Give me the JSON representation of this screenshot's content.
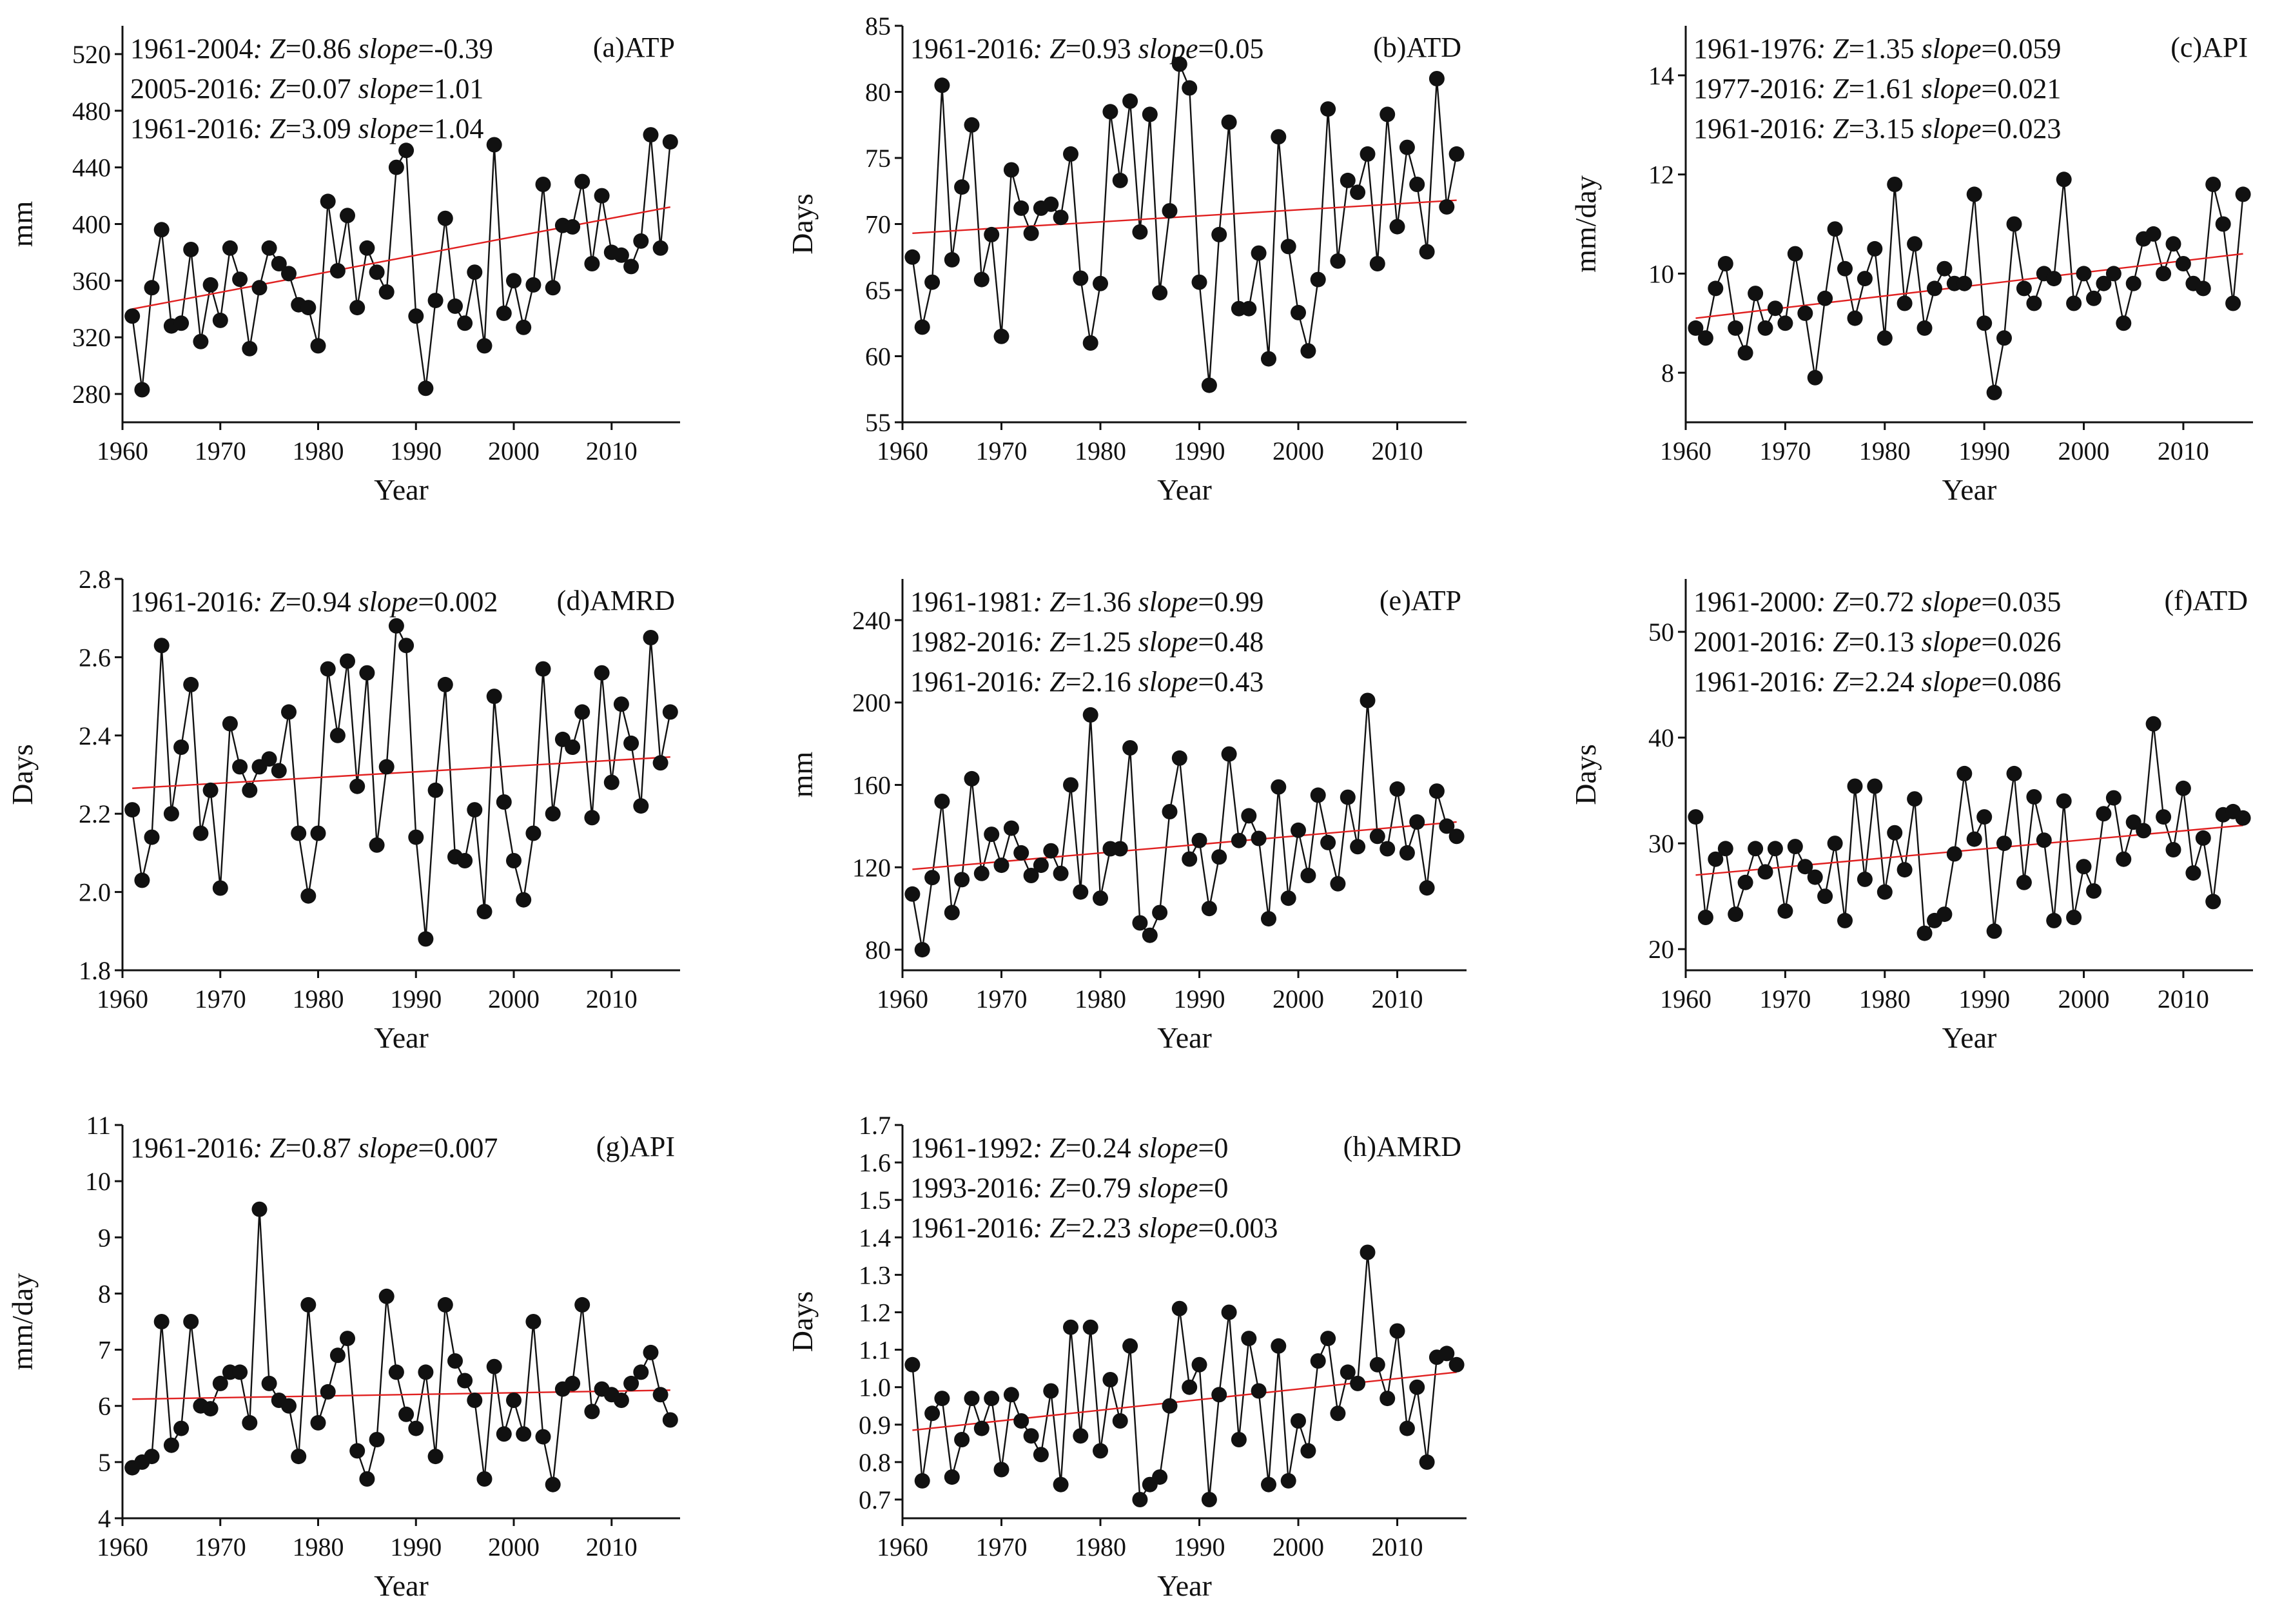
{
  "figure": {
    "x_label": "Year"
  },
  "chart_data": [
    {
      "type": "line",
      "panel": "(a)ATP",
      "ylabel": "mm",
      "xlim": [
        1960,
        2017
      ],
      "ylim": [
        260,
        540
      ],
      "xticks": [
        1960,
        1970,
        1980,
        1990,
        2000,
        2010
      ],
      "yticks": [
        280,
        320,
        360,
        400,
        440,
        480,
        520
      ],
      "annotations": [
        {
          "period": "1961-2004",
          "z": "0.86",
          "slope": "-0.39"
        },
        {
          "period": "2005-2016",
          "z": "0.07",
          "slope": "1.01"
        },
        {
          "period": "1961-2016",
          "z": "3.09",
          "slope": "1.04"
        }
      ],
      "start_year": 1961,
      "values": [
        335,
        283,
        355,
        396,
        328,
        330,
        382,
        317,
        357,
        332,
        383,
        361,
        312,
        355,
        383,
        372,
        365,
        343,
        341,
        314,
        416,
        367,
        406,
        341,
        383,
        366,
        352,
        440,
        452,
        335,
        284,
        346,
        404,
        342,
        330,
        366,
        314,
        456,
        337,
        360,
        327,
        357,
        428,
        355,
        399,
        398,
        430,
        372,
        420,
        380,
        378,
        370,
        388,
        463,
        383,
        458
      ],
      "trend": [
        [
          1961,
          340
        ],
        [
          2016,
          412
        ]
      ]
    },
    {
      "type": "line",
      "panel": "(b)ATD",
      "ylabel": "Days",
      "xlim": [
        1960,
        2017
      ],
      "ylim": [
        55,
        85
      ],
      "xticks": [
        1960,
        1970,
        1980,
        1990,
        2000,
        2010
      ],
      "yticks": [
        55,
        60,
        65,
        70,
        75,
        80,
        85
      ],
      "annotations": [
        {
          "period": "1961-2016",
          "z": "0.93",
          "slope": "0.05"
        }
      ],
      "start_year": 1961,
      "values": [
        67.5,
        62.2,
        65.6,
        80.5,
        67.3,
        72.8,
        77.5,
        65.8,
        69.2,
        61.5,
        74.1,
        71.2,
        69.3,
        71.2,
        71.5,
        70.5,
        75.3,
        65.9,
        61.0,
        65.5,
        78.5,
        73.3,
        79.3,
        69.4,
        78.3,
        64.8,
        71.0,
        82.1,
        80.3,
        65.6,
        57.8,
        69.2,
        77.7,
        63.6,
        63.6,
        67.8,
        59.8,
        76.6,
        68.3,
        63.3,
        60.4,
        65.8,
        78.7,
        67.2,
        73.3,
        72.4,
        75.3,
        67.0,
        78.3,
        69.8,
        75.8,
        73.0,
        67.9,
        81.0,
        71.3,
        75.3
      ],
      "trend": [
        [
          1961,
          69.3
        ],
        [
          2016,
          71.8
        ]
      ]
    },
    {
      "type": "line",
      "panel": "(c)API",
      "ylabel": "mm/day",
      "xlim": [
        1960,
        2017
      ],
      "ylim": [
        7,
        15
      ],
      "xticks": [
        1960,
        1970,
        1980,
        1990,
        2000,
        2010
      ],
      "yticks": [
        8,
        10,
        12,
        14
      ],
      "annotations": [
        {
          "period": "1961-1976",
          "z": "1.35",
          "slope": "0.059"
        },
        {
          "period": "1977-2016",
          "z": "1.61",
          "slope": "0.021"
        },
        {
          "period": "1961-2016",
          "z": "3.15",
          "slope": "0.023"
        }
      ],
      "start_year": 1961,
      "values": [
        8.9,
        8.7,
        9.7,
        10.2,
        8.9,
        8.4,
        9.6,
        8.9,
        9.3,
        9.0,
        10.4,
        9.2,
        7.9,
        9.5,
        10.9,
        10.1,
        9.1,
        9.9,
        10.5,
        8.7,
        11.8,
        9.4,
        10.6,
        8.9,
        9.7,
        10.1,
        9.8,
        9.8,
        11.6,
        9.0,
        7.6,
        8.7,
        11.0,
        9.7,
        9.4,
        10.0,
        9.9,
        11.9,
        9.4,
        10.0,
        9.5,
        9.8,
        10.0,
        9.0,
        9.8,
        10.7,
        10.8,
        10.0,
        10.6,
        10.2,
        9.8,
        9.7,
        11.8,
        11.0,
        9.4,
        11.6
      ],
      "trend": [
        [
          1961,
          9.1
        ],
        [
          2016,
          10.4
        ]
      ]
    },
    {
      "type": "line",
      "panel": "(d)AMRD",
      "ylabel": "Days",
      "xlim": [
        1960,
        2017
      ],
      "ylim": [
        1.8,
        2.8
      ],
      "xticks": [
        1960,
        1970,
        1980,
        1990,
        2000,
        2010
      ],
      "yticks": [
        "1.8",
        "2.0",
        "2.2",
        "2.4",
        "2.6",
        "2.8"
      ],
      "annotations": [
        {
          "period": "1961-2016",
          "z": "0.94",
          "slope": "0.002"
        }
      ],
      "start_year": 1961,
      "values": [
        2.21,
        2.03,
        2.14,
        2.63,
        2.2,
        2.37,
        2.53,
        2.15,
        2.26,
        2.01,
        2.43,
        2.32,
        2.26,
        2.32,
        2.34,
        2.31,
        2.46,
        2.15,
        1.99,
        2.15,
        2.57,
        2.4,
        2.59,
        2.27,
        2.56,
        2.12,
        2.32,
        2.68,
        2.63,
        2.14,
        1.88,
        2.26,
        2.53,
        2.09,
        2.08,
        2.21,
        1.95,
        2.5,
        2.23,
        2.08,
        1.98,
        2.15,
        2.57,
        2.2,
        2.39,
        2.37,
        2.46,
        2.19,
        2.56,
        2.28,
        2.48,
        2.38,
        2.22,
        2.65,
        2.33,
        2.46
      ],
      "trend": [
        [
          1961,
          2.265
        ],
        [
          2016,
          2.345
        ]
      ]
    },
    {
      "type": "line",
      "panel": "(e)ATP",
      "ylabel": "mm",
      "xlim": [
        1960,
        2017
      ],
      "ylim": [
        70,
        260
      ],
      "xticks": [
        1960,
        1970,
        1980,
        1990,
        2000,
        2010
      ],
      "yticks": [
        80,
        120,
        160,
        200,
        240
      ],
      "annotations": [
        {
          "period": "1961-1981",
          "z": "1.36",
          "slope": "0.99"
        },
        {
          "period": "1982-2016",
          "z": "1.25",
          "slope": "0.48"
        },
        {
          "period": "1961-2016",
          "z": "2.16",
          "slope": "0.43"
        }
      ],
      "start_year": 1961,
      "values": [
        107,
        80,
        115,
        152,
        98,
        114,
        163,
        117,
        136,
        121,
        139,
        127,
        116,
        121,
        128,
        117,
        160,
        108,
        194,
        105,
        129,
        129,
        178,
        93,
        87,
        98,
        147,
        173,
        124,
        133,
        100,
        125,
        175,
        133,
        145,
        134,
        95,
        159,
        105,
        138,
        116,
        155,
        132,
        112,
        154,
        130,
        201,
        135,
        129,
        158,
        127,
        142,
        110,
        157,
        140,
        135
      ],
      "trend": [
        [
          1961,
          119
        ],
        [
          2016,
          142
        ]
      ]
    },
    {
      "type": "line",
      "panel": "(f)ATD",
      "ylabel": "Days",
      "xlim": [
        1960,
        2017
      ],
      "ylim": [
        18,
        55
      ],
      "xticks": [
        1960,
        1970,
        1980,
        1990,
        2000,
        2010
      ],
      "yticks": [
        20,
        30,
        40,
        50
      ],
      "annotations": [
        {
          "period": "1961-2000",
          "z": "0.72",
          "slope": "0.035"
        },
        {
          "period": "2001-2016",
          "z": "0.13",
          "slope": "0.026"
        },
        {
          "period": "1961-2016",
          "z": "2.24",
          "slope": "0.086"
        }
      ],
      "start_year": 1961,
      "values": [
        32.5,
        23.0,
        28.5,
        29.5,
        23.3,
        26.3,
        29.5,
        27.3,
        29.5,
        23.6,
        29.7,
        27.8,
        26.8,
        25.0,
        30.0,
        22.7,
        35.4,
        26.6,
        35.4,
        25.4,
        31.0,
        27.5,
        34.2,
        21.5,
        22.7,
        23.3,
        29.0,
        36.6,
        30.4,
        32.5,
        21.7,
        30.0,
        36.6,
        26.3,
        34.4,
        30.3,
        22.7,
        34.0,
        23.0,
        27.8,
        25.5,
        32.8,
        34.3,
        28.5,
        32.0,
        31.2,
        41.3,
        32.5,
        29.4,
        35.2,
        27.2,
        30.5,
        24.5,
        32.7,
        33.0,
        32.4
      ],
      "trend": [
        [
          1961,
          27.0
        ],
        [
          2016,
          31.7
        ]
      ]
    },
    {
      "type": "line",
      "panel": "(g)API",
      "ylabel": "mm/day",
      "xlim": [
        1960,
        2017
      ],
      "ylim": [
        4,
        11
      ],
      "xticks": [
        1960,
        1970,
        1980,
        1990,
        2000,
        2010
      ],
      "yticks": [
        4,
        5,
        6,
        7,
        8,
        9,
        10,
        11
      ],
      "annotations": [
        {
          "period": "1961-2016",
          "z": "0.87",
          "slope": "0.007"
        }
      ],
      "start_year": 1961,
      "values": [
        4.9,
        5.0,
        5.1,
        7.5,
        5.3,
        5.6,
        7.5,
        6.0,
        5.95,
        6.4,
        6.6,
        6.6,
        5.7,
        9.5,
        6.4,
        6.1,
        6.0,
        5.1,
        7.8,
        5.7,
        6.25,
        6.9,
        7.2,
        5.2,
        4.7,
        5.4,
        7.95,
        6.6,
        5.85,
        5.6,
        6.6,
        5.1,
        7.8,
        6.8,
        6.45,
        6.1,
        4.7,
        6.7,
        5.5,
        6.1,
        5.5,
        7.5,
        5.45,
        4.6,
        6.3,
        6.4,
        7.8,
        5.9,
        6.3,
        6.2,
        6.1,
        6.4,
        6.6,
        6.95,
        6.2,
        5.75
      ],
      "trend": [
        [
          1961,
          6.12
        ],
        [
          2016,
          6.28
        ]
      ]
    },
    {
      "type": "line",
      "panel": "(h)AMRD",
      "ylabel": "Days",
      "xlim": [
        1960,
        2017
      ],
      "ylim": [
        0.65,
        1.7
      ],
      "xticks": [
        1960,
        1970,
        1980,
        1990,
        2000,
        2010
      ],
      "yticks": [
        "0.7",
        "0.8",
        "0.9",
        "1.0",
        "1.1",
        "1.2",
        "1.3",
        "1.4",
        "1.5",
        "1.6",
        "1.7"
      ],
      "annotations": [
        {
          "period": "1961-1992",
          "z": "0.24",
          "slope": "0"
        },
        {
          "period": "1993-2016",
          "z": "0.79",
          "slope": "0"
        },
        {
          "period": "1961-2016",
          "z": "2.23",
          "slope": "0.003"
        }
      ],
      "start_year": 1961,
      "values": [
        1.06,
        0.75,
        0.93,
        0.97,
        0.76,
        0.86,
        0.97,
        0.89,
        0.97,
        0.78,
        0.98,
        0.91,
        0.87,
        0.82,
        0.99,
        0.74,
        1.16,
        0.87,
        1.16,
        0.83,
        1.02,
        0.91,
        1.11,
        0.7,
        0.74,
        0.76,
        0.95,
        1.21,
        1.0,
        1.06,
        0.7,
        0.98,
        1.2,
        0.86,
        1.13,
        0.99,
        0.74,
        1.11,
        0.75,
        0.91,
        0.83,
        1.07,
        1.13,
        0.93,
        1.04,
        1.01,
        1.36,
        1.06,
        0.97,
        1.15,
        0.89,
        1.0,
        0.8,
        1.08,
        1.09,
        1.06
      ],
      "trend": [
        [
          1961,
          0.885
        ],
        [
          2016,
          1.04
        ]
      ]
    }
  ]
}
